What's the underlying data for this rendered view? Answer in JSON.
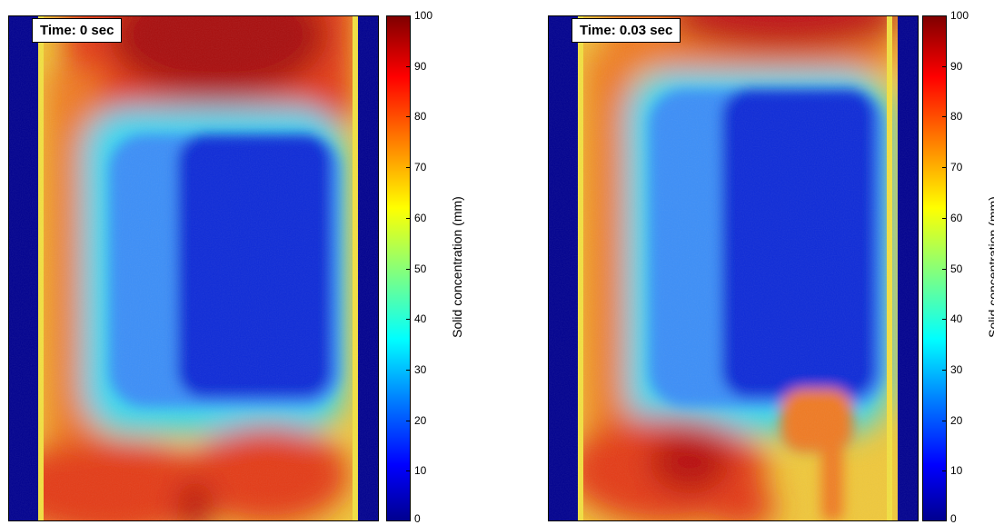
{
  "chart_data": [
    {
      "type": "heatmap",
      "annotation": "Time: 0 sec",
      "colorbar": {
        "label": "Solid concentration (mm)",
        "range": [
          0,
          100
        ],
        "ticks": [
          "100",
          "90",
          "80",
          "70",
          "60",
          "50",
          "40",
          "30",
          "20",
          "10",
          "0"
        ],
        "colormap": "jet"
      },
      "regions": [
        {
          "region": "left wall",
          "value": 0
        },
        {
          "region": "right wall",
          "value": 0
        },
        {
          "region": "top",
          "value": 88
        },
        {
          "region": "central bubble",
          "value": 8
        },
        {
          "region": "bottom left",
          "value": 85
        },
        {
          "region": "bottom right",
          "value": 85
        }
      ]
    },
    {
      "type": "heatmap",
      "annotation": "Time: 0.03 sec",
      "colorbar": {
        "label": "Solid concentration (mm)",
        "range": [
          0,
          100
        ],
        "ticks": [
          "100",
          "90",
          "80",
          "70",
          "60",
          "50",
          "40",
          "30",
          "20",
          "10",
          "0"
        ],
        "colormap": "jet"
      },
      "regions": [
        {
          "region": "left wall",
          "value": 0
        },
        {
          "region": "right wall",
          "value": 0
        },
        {
          "region": "top",
          "value": 80
        },
        {
          "region": "central bubble",
          "value": 8
        },
        {
          "region": "bottom left",
          "value": 88
        },
        {
          "region": "bottom right plume",
          "value": 75
        }
      ]
    }
  ]
}
